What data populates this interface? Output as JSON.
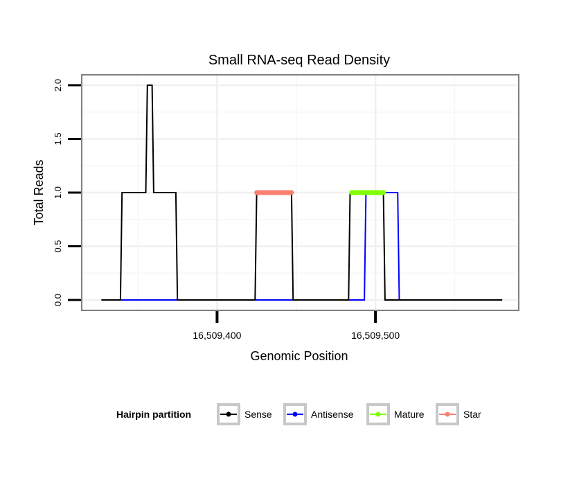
{
  "chart_data": {
    "type": "line",
    "title": "Small RNA-seq Read Density",
    "xlabel": "Genomic Position",
    "ylabel": "Total Reads",
    "xlim": [
      16509315,
      16509590
    ],
    "ylim": [
      -0.09,
      2.09
    ],
    "x_ticks": [
      16509400,
      16509500
    ],
    "x_tick_labels": [
      "16,509,400",
      "16,509,500"
    ],
    "y_ticks": [
      0,
      0.5,
      1,
      1.5,
      2
    ],
    "y_tick_labels": [
      "0.0",
      "0.5",
      "1.0",
      "1.5",
      "2.0"
    ],
    "grid": true,
    "legend": {
      "title": "Hairpin partition",
      "position": "bottom",
      "entries": [
        "Sense",
        "Antisense",
        "Mature",
        "Star"
      ]
    },
    "series": [
      {
        "name": "Sense",
        "color": "#000000",
        "x": [
          16509327,
          16509339,
          16509340,
          16509355,
          16509356,
          16509359,
          16509360,
          16509374,
          16509375,
          16509424,
          16509425,
          16509447,
          16509448,
          16509483,
          16509484,
          16509489,
          16509489,
          16509505,
          16509506,
          16509580
        ],
        "values": [
          0,
          0,
          1,
          1,
          2,
          2,
          1,
          1,
          0,
          0,
          1,
          1,
          0,
          0,
          1,
          1,
          1,
          1,
          0,
          0
        ]
      },
      {
        "name": "Antisense",
        "color": "#0000ff",
        "x": [
          16509327,
          16509493,
          16509494,
          16509514,
          16509515,
          16509580
        ],
        "values": [
          0,
          0,
          1,
          1,
          0,
          0
        ]
      },
      {
        "name": "Mature",
        "color": "#7fff00",
        "x": [
          16509485,
          16509505
        ],
        "values": [
          1,
          1
        ]
      },
      {
        "name": "Star",
        "color": "#fa8072",
        "x": [
          16509425,
          16509447
        ],
        "values": [
          1,
          1
        ]
      }
    ]
  }
}
